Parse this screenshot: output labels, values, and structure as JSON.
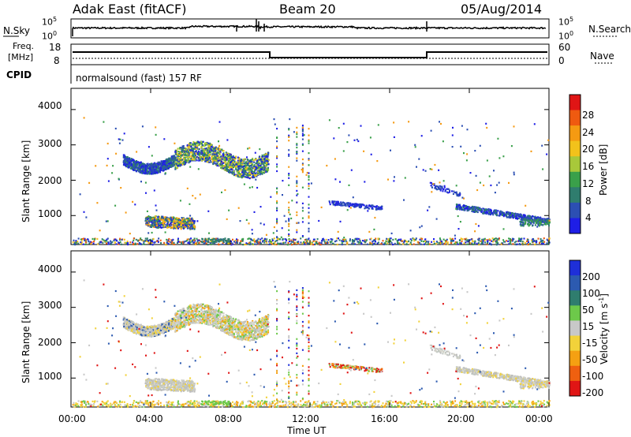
{
  "header": {
    "station": "Adak East (fitACF)",
    "beam": "Beam 20",
    "date": "05/Aug/2014"
  },
  "top_panels": {
    "nsky_label": "N.Sky",
    "nsearch_label": "N.Search",
    "sky_ticks": [
      "10^5",
      "10^0"
    ],
    "freq_label": "Freq.",
    "freq_unit": "[MHz]",
    "freq_ticks": [
      "18",
      "8"
    ],
    "nave_label": "Nave",
    "nave_ticks": [
      "60",
      "0"
    ],
    "cpid_label": "CPID",
    "cpid_text": "normalsound (fast) 157 RF"
  },
  "x_axis": {
    "label": "Time UT",
    "ticks": [
      "00:00",
      "04:00",
      "08:00",
      "12:00",
      "16:00",
      "20:00",
      "00:00"
    ]
  },
  "chart_data": [
    {
      "type": "heatmap",
      "title": "",
      "xlabel": "",
      "ylabel": "Slant Range [km]",
      "ylim": [
        180,
        4600
      ],
      "yticks": [
        "1000",
        "2000",
        "3000",
        "4000"
      ],
      "colorbar_label": "Power [dB]",
      "colorbar_ticks": [
        "4",
        "8",
        "12",
        "16",
        "20",
        "24",
        "28"
      ],
      "colors": [
        "#1e1ee6",
        "#2c4fb3",
        "#2f7d6e",
        "#3aa04a",
        "#a8c83a",
        "#f2c21b",
        "#f59a12",
        "#ef5a10",
        "#e01515"
      ]
    },
    {
      "type": "heatmap",
      "title": "",
      "xlabel": "Time UT",
      "ylabel": "Slant Range [km]",
      "ylim": [
        180,
        4600
      ],
      "yticks": [
        "1000",
        "2000",
        "3000",
        "4000"
      ],
      "colorbar_label": "Velocity [m s^-1]",
      "colorbar_ticks": [
        "200",
        "100",
        "50",
        "15",
        "-15",
        "-50",
        "-100",
        "-200"
      ],
      "colors": [
        "#1e2fd8",
        "#2c5ab0",
        "#2f7d6e",
        "#6dc94a",
        "#c8c8c8",
        "#f2d23a",
        "#f5a012",
        "#ef6010",
        "#e01515"
      ]
    }
  ]
}
